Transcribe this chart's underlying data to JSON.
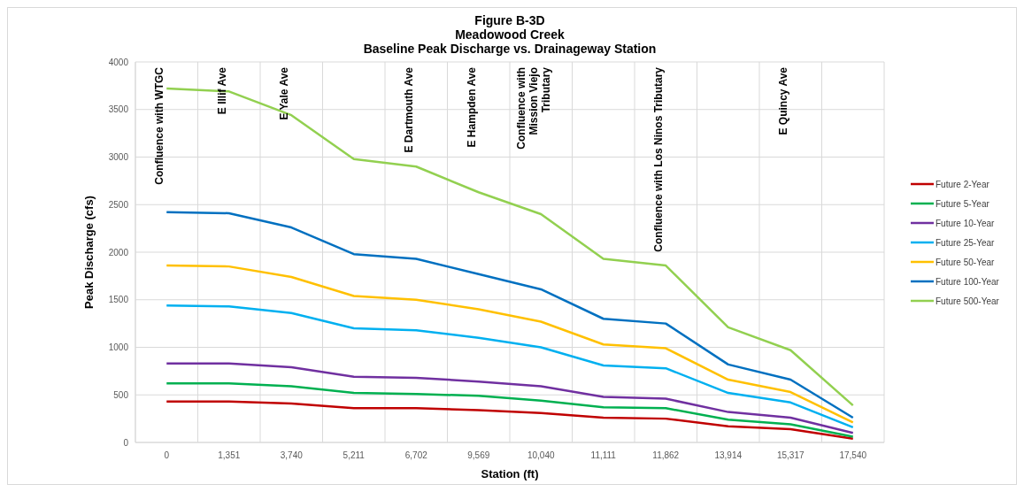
{
  "chart_data": {
    "type": "line",
    "title": "Figure B-3D\nMeadowood Creek\nBaseline Peak Discharge vs. Drainageway Station",
    "xlabel": "Station (ft)",
    "ylabel": "Peak Discharge (cfs)",
    "categories": [
      "0",
      "1,351",
      "3,740",
      "5,211",
      "6,702",
      "9,569",
      "10,040",
      "11,111",
      "11,862",
      "13,914",
      "15,317",
      "17,540"
    ],
    "series": [
      {
        "name": "Future 2-Year",
        "color": "#c00000",
        "values": [
          430,
          430,
          410,
          360,
          360,
          340,
          310,
          260,
          250,
          170,
          140,
          40
        ]
      },
      {
        "name": "Future 5-Year",
        "color": "#00b050",
        "values": [
          620,
          620,
          590,
          520,
          510,
          490,
          440,
          370,
          360,
          240,
          190,
          60
        ]
      },
      {
        "name": "Future 10-Year",
        "color": "#7030a0",
        "values": [
          830,
          830,
          790,
          690,
          680,
          640,
          590,
          480,
          460,
          320,
          260,
          100
        ]
      },
      {
        "name": "Future 25-Year",
        "color": "#00b0f0",
        "values": [
          1440,
          1430,
          1360,
          1200,
          1180,
          1100,
          1000,
          810,
          780,
          520,
          420,
          160
        ]
      },
      {
        "name": "Future 50-Year",
        "color": "#ffc000",
        "values": [
          1860,
          1850,
          1740,
          1540,
          1500,
          1400,
          1270,
          1030,
          990,
          660,
          530,
          210
        ]
      },
      {
        "name": "Future 100-Year",
        "color": "#0070c0",
        "values": [
          2420,
          2410,
          2260,
          1980,
          1930,
          1770,
          1610,
          1300,
          1250,
          820,
          660,
          260
        ]
      },
      {
        "name": "Future 500-Year",
        "color": "#92d050",
        "values": [
          3720,
          3690,
          3440,
          2980,
          2900,
          2630,
          2400,
          1930,
          1860,
          1210,
          970,
          390
        ]
      }
    ],
    "ylim": [
      0,
      4000
    ],
    "yticks": [
      0,
      500,
      1000,
      1500,
      2000,
      2500,
      3000,
      3500,
      4000
    ],
    "grid": true,
    "legend": "right",
    "marker": "none",
    "line_style": "solid",
    "annotations": [
      "Confluence with WTGC",
      "E Illif Ave",
      "E Yale Ave",
      "E Dartmouth Ave",
      "E Hampden Ave",
      "Confluence with\nMission Viejo\nTributary",
      "Confluence  with Los Ninos Tributary",
      "E Quincy  Ave"
    ]
  }
}
